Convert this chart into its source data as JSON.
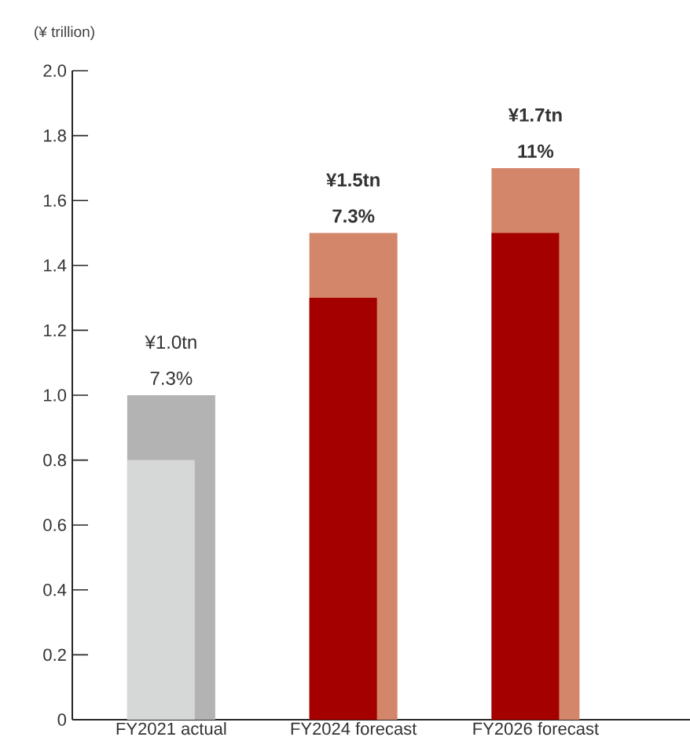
{
  "chart_data": {
    "type": "bar",
    "ylabel": "(¥ trillion)",
    "categories": [
      "FY2021 actual",
      "FY2024 forecast",
      "FY2026 forecast"
    ],
    "series": [
      {
        "colors": [
          "#b3b3b3",
          "#d4866a",
          "#d4866a"
        ],
        "values": [
          1.0,
          1.5,
          1.7
        ],
        "value_labels": [
          "¥1.0tn",
          "¥1.5tn",
          "¥1.7tn"
        ]
      },
      {
        "colors": [
          "#d6d7d7",
          "#a50000",
          "#a50000"
        ],
        "values": [
          0.8,
          1.3,
          1.5
        ]
      }
    ],
    "annotations": [
      {
        "text": "7.3%",
        "x": "FY2021 actual",
        "y": 1.0
      },
      {
        "text": "7.3%",
        "x": "FY2024 forecast",
        "y": 1.5
      },
      {
        "text": "11%",
        "x": "FY2026 forecast",
        "y": 1.7
      }
    ],
    "ylim": [
      0,
      2.0
    ],
    "yticks": [
      0,
      0.2,
      0.4,
      0.6,
      0.8,
      {
        "value": 1.0,
        "label": "1.0"
      },
      1.2,
      1.4,
      1.6,
      1.8,
      {
        "value": 2.0,
        "label": "2.0"
      }
    ],
    "grid": false
  }
}
